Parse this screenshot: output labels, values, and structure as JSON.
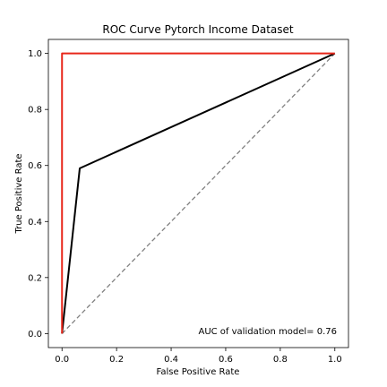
{
  "chart_data": {
    "type": "line",
    "title": "ROC Curve Pytorch Income Dataset",
    "xlabel": "False Positive Rate",
    "ylabel": "True Positive Rate",
    "xlim": [
      -0.05,
      1.05
    ],
    "ylim": [
      -0.05,
      1.05
    ],
    "xticks": [
      0.0,
      0.2,
      0.4,
      0.6,
      0.8,
      1.0
    ],
    "yticks": [
      0.0,
      0.2,
      0.4,
      0.6,
      0.8,
      1.0
    ],
    "xtick_labels": [
      "0.0",
      "0.2",
      "0.4",
      "0.6",
      "0.8",
      "1.0"
    ],
    "ytick_labels": [
      "0.0",
      "0.2",
      "0.4",
      "0.6",
      "0.8",
      "1.0"
    ],
    "grid": false,
    "series": [
      {
        "color": "#000000",
        "style": "solid",
        "x": [
          0.0,
          0.065,
          1.0
        ],
        "y": [
          0.0,
          0.59,
          1.0
        ]
      },
      {
        "color": "#e8271b",
        "style": "solid",
        "x": [
          0.0,
          0.0,
          1.0
        ],
        "y": [
          0.0,
          1.0,
          1.0
        ]
      },
      {
        "color": "#808080",
        "style": "dashed",
        "x": [
          0.0,
          1.0
        ],
        "y": [
          0.0,
          1.0
        ]
      }
    ],
    "annotation": "AUC of validation model= 0.76"
  }
}
